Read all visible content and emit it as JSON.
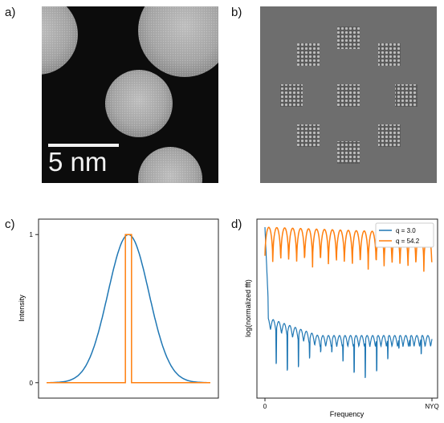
{
  "panels": {
    "a": {
      "label": "a)",
      "scalebar_label": "5 nm"
    },
    "b": {
      "label": "b)"
    },
    "c": {
      "label": "c)"
    },
    "d": {
      "label": "d)"
    }
  },
  "chart_data": [
    {
      "panel": "c",
      "type": "line",
      "title": "",
      "xlabel": "",
      "ylabel": "Intensity",
      "yticks": [
        0,
        1
      ],
      "ylim": [
        -0.05,
        1.05
      ],
      "xlim": [
        -4,
        4
      ],
      "grid": false,
      "series": [
        {
          "color": "#1f77b4",
          "shape": "gaussian",
          "center": 0,
          "sigma": 1.0,
          "peak": 1.0
        },
        {
          "color": "#ff7f0e",
          "shape": "top-hat",
          "left": -0.15,
          "right": 0.15,
          "peak": 1.0
        }
      ]
    },
    {
      "panel": "d",
      "type": "line",
      "title": "",
      "xlabel": "Frequency",
      "ylabel": "log(normalized fft)",
      "xticks": [
        "0",
        "NYQ"
      ],
      "grid": false,
      "legend": {
        "placement": "top-right",
        "entries": [
          "q = 3.0",
          "q = 54.2"
        ]
      },
      "series": [
        {
          "name": "q = 3.0",
          "color": "#1f77b4"
        },
        {
          "name": "q = 54.2",
          "color": "#ff7f0e"
        }
      ]
    }
  ]
}
